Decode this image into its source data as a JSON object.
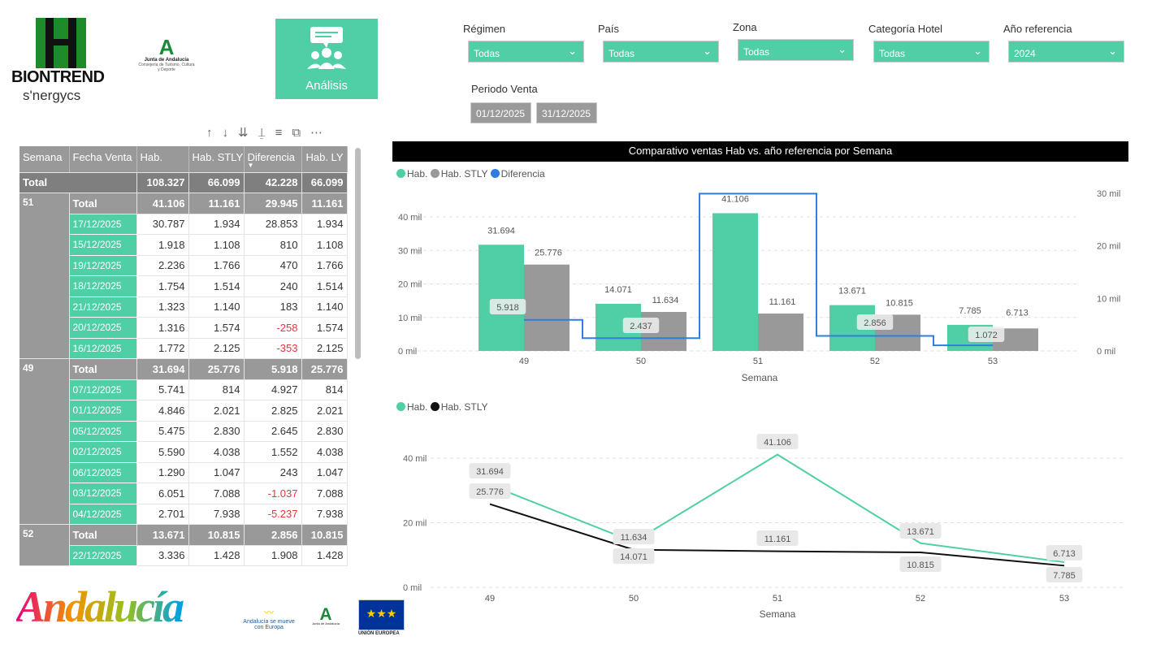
{
  "branding": {
    "biontrend": "BIONTREND",
    "synergycs": "s'nergycs",
    "junta": "Junta de Andalucía",
    "junta_sub": "Consejería de Turismo, Cultura y Deporte",
    "andalucia": "Andalucía",
    "andalucia_mueve": "Andalucía se mueve con Europa",
    "eu": "UNIÓN EUROPEA"
  },
  "nav": {
    "analisis_label": "Análisis"
  },
  "filters": [
    {
      "label": "Régimen",
      "value": "Todas"
    },
    {
      "label": "País",
      "value": "Todas"
    },
    {
      "label": "Zona",
      "value": "Todas"
    },
    {
      "label": "Categoría Hotel",
      "value": "Todas"
    },
    {
      "label": "Año referencia",
      "value": "2024"
    }
  ],
  "period": {
    "label": "Periodo Venta",
    "from": "01/12/2025",
    "to": "31/12/2025"
  },
  "table": {
    "headers": [
      "Semana",
      "Fecha Venta",
      "Hab.",
      "Hab. STLY",
      "Diferencia",
      "Hab. LY"
    ],
    "sorted_column": "Diferencia",
    "total_label": "Total",
    "grand_total": [
      "108.327",
      "66.099",
      "42.228",
      "66.099"
    ],
    "groups": [
      {
        "semana": "51",
        "total": [
          "41.106",
          "11.161",
          "29.945",
          "11.161"
        ],
        "rows": [
          [
            "17/12/2025",
            "30.787",
            "1.934",
            "28.853",
            "1.934"
          ],
          [
            "15/12/2025",
            "1.918",
            "1.108",
            "810",
            "1.108"
          ],
          [
            "19/12/2025",
            "2.236",
            "1.766",
            "470",
            "1.766"
          ],
          [
            "18/12/2025",
            "1.754",
            "1.514",
            "240",
            "1.514"
          ],
          [
            "21/12/2025",
            "1.323",
            "1.140",
            "183",
            "1.140"
          ],
          [
            "20/12/2025",
            "1.316",
            "1.574",
            "-258",
            "1.574"
          ],
          [
            "16/12/2025",
            "1.772",
            "2.125",
            "-353",
            "2.125"
          ]
        ]
      },
      {
        "semana": "49",
        "total": [
          "31.694",
          "25.776",
          "5.918",
          "25.776"
        ],
        "rows": [
          [
            "07/12/2025",
            "5.741",
            "814",
            "4.927",
            "814"
          ],
          [
            "01/12/2025",
            "4.846",
            "2.021",
            "2.825",
            "2.021"
          ],
          [
            "05/12/2025",
            "5.475",
            "2.830",
            "2.645",
            "2.830"
          ],
          [
            "02/12/2025",
            "5.590",
            "4.038",
            "1.552",
            "4.038"
          ],
          [
            "06/12/2025",
            "1.290",
            "1.047",
            "243",
            "1.047"
          ],
          [
            "03/12/2025",
            "6.051",
            "7.088",
            "-1.037",
            "7.088"
          ],
          [
            "04/12/2025",
            "2.701",
            "7.938",
            "-5.237",
            "7.938"
          ]
        ]
      },
      {
        "semana": "52",
        "total": [
          "13.671",
          "10.815",
          "2.856",
          "10.815"
        ],
        "rows": [
          [
            "22/12/2025",
            "3.336",
            "1.428",
            "1.908",
            "1.428"
          ]
        ]
      }
    ]
  },
  "colors": {
    "hab": "#50cfa7",
    "stly": "#999999",
    "diferencia": "#2f7de1",
    "stly_line": "#111111"
  },
  "chart_data": [
    {
      "type": "bar",
      "title": "Comparativo ventas Hab vs. año referencia por Semana",
      "xlabel": "Semana",
      "categories": [
        "49",
        "50",
        "51",
        "52",
        "53"
      ],
      "series": [
        {
          "name": "Hab.",
          "values": [
            31694,
            14071,
            41106,
            13671,
            7785
          ],
          "labels": [
            "31.694",
            "14.071",
            "41.106",
            "13.671",
            "7.785"
          ]
        },
        {
          "name": "Hab. STLY",
          "values": [
            25776,
            11634,
            11161,
            10815,
            6713
          ],
          "labels": [
            "25.776",
            "11.634",
            "11.161",
            "10.815",
            "6.713"
          ]
        },
        {
          "name": "Diferencia",
          "type": "step-line",
          "axis": "right",
          "values": [
            5918,
            2437,
            29945,
            2856,
            1072
          ],
          "labels": [
            "5.918",
            "2.437",
            "",
            "2.856",
            "1.072"
          ]
        }
      ],
      "y_left": {
        "range": [
          0,
          40000
        ],
        "ticks": [
          "0 mil",
          "10 mil",
          "20 mil",
          "30 mil",
          "40 mil"
        ]
      },
      "y_right": {
        "range": [
          0,
          30000
        ],
        "ticks": [
          "0 mil",
          "10 mil",
          "20 mil",
          "30 mil"
        ]
      },
      "legend": "top-left",
      "grid": true
    },
    {
      "type": "line",
      "xlabel": "Semana",
      "categories": [
        "49",
        "50",
        "51",
        "52",
        "53"
      ],
      "series": [
        {
          "name": "Hab.",
          "values": [
            31694,
            14071,
            41106,
            13671,
            7785
          ],
          "labels": [
            "31.694",
            "14.071",
            "41.106",
            "13.671",
            "7.785"
          ]
        },
        {
          "name": "Hab. STLY",
          "values": [
            25776,
            11634,
            11161,
            10815,
            6713
          ],
          "labels": [
            "25.776",
            "11.634",
            "11.161",
            "10.815",
            "6.713"
          ]
        }
      ],
      "y": {
        "range": [
          0,
          40000
        ],
        "ticks": [
          "0 mil",
          "20 mil",
          "40 mil"
        ]
      },
      "legend": "top-left",
      "grid": true
    }
  ]
}
